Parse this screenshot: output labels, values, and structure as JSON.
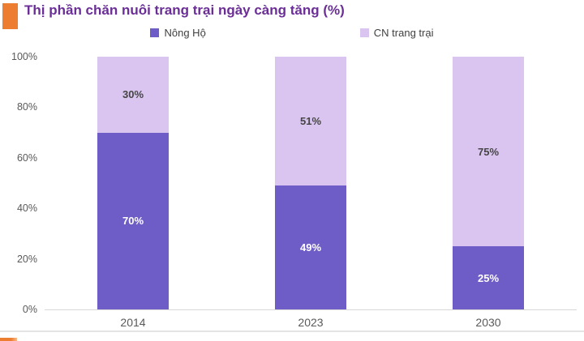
{
  "header": {
    "title": "Thị phần chăn nuôi trang trại ngày càng tăng (%)"
  },
  "colors": {
    "accent_orange": "#ED7D31",
    "title_purple": "#6A2E96",
    "axis_text_gray": "#595959",
    "series_dark_purple": "#6E5DC6",
    "series_light_purple": "#D9C5EF"
  },
  "chart_data": {
    "type": "bar",
    "stacked": true,
    "title": "Thị phần chăn nuôi trang trại ngày càng tăng (%)",
    "categories": [
      "2014",
      "2023",
      "2030"
    ],
    "series": [
      {
        "name": "Nông Hộ",
        "values": [
          70,
          49,
          25
        ],
        "labels": [
          "70%",
          "49%",
          "25%"
        ],
        "color": "#6E5DC6",
        "label_color": "#FFFFFF"
      },
      {
        "name": "CN trang trại",
        "values": [
          30,
          51,
          75
        ],
        "labels": [
          "30%",
          "51%",
          "75%"
        ],
        "color": "#D9C5EF",
        "label_color": "#454545"
      }
    ],
    "xlabel": "",
    "ylabel": "",
    "ylim": [
      0,
      100
    ],
    "yticks_top_to_bottom": [
      "100%",
      "80%",
      "60%",
      "40%",
      "20%",
      "0%"
    ],
    "grid": false,
    "legend_position": "top"
  }
}
